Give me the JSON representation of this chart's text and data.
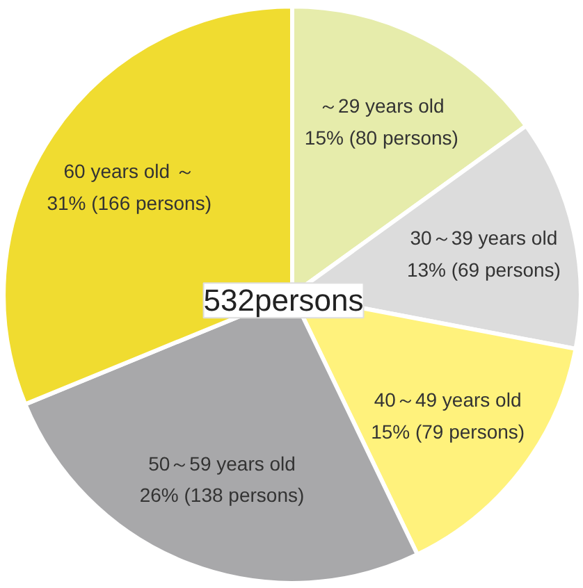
{
  "chart_data": {
    "type": "pie",
    "categories": [
      "～29 years old",
      "30～39 years old",
      "40～49 years old",
      "50～59 years old",
      "60 years old ～"
    ],
    "values": [
      80,
      69,
      79,
      138,
      166
    ],
    "value_labels": [
      "15% (80 persons)",
      "13% (69 persons)",
      "15% (79 persons)",
      "26% (138 persons)",
      "31% (166 persons)"
    ],
    "colors": [
      "#e6ecab",
      "#dcdcdc",
      "#fff27c",
      "#a8a8aa",
      "#f0dc30"
    ],
    "annotations": [
      "532persons"
    ]
  }
}
